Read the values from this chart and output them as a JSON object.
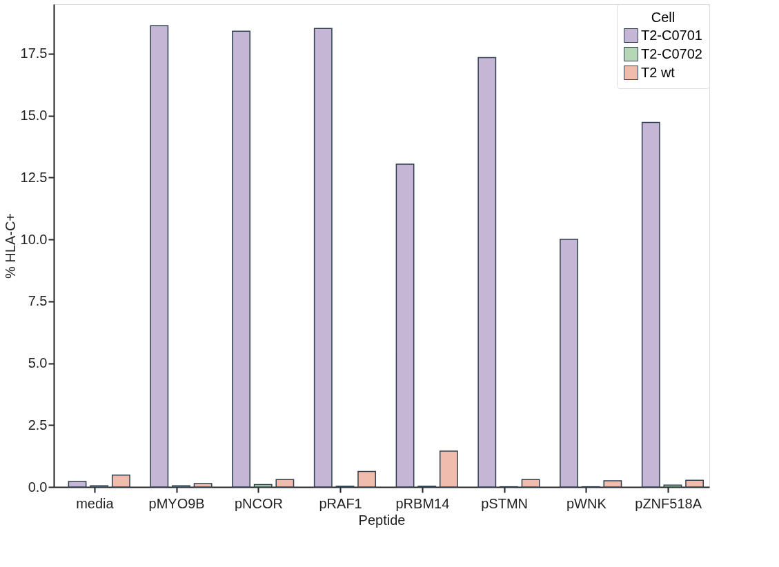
{
  "chart_data": {
    "type": "bar",
    "xlabel": "Peptide",
    "ylabel": "% HLA-C+",
    "legend_title": "Cell",
    "legend": "top right",
    "grid": false,
    "categories": [
      "media",
      "pMYO9B",
      "pNCOR",
      "pRAF1",
      "pRBM14",
      "pSTMN",
      "pWNK",
      "pZNF518A"
    ],
    "series": [
      {
        "name": "T2-C0701",
        "color": "#c5b6d6",
        "values": [
          0.22,
          18.63,
          18.41,
          18.52,
          13.04,
          17.34,
          10.0,
          14.72
        ]
      },
      {
        "name": "T2-C0702",
        "color": "#b6d7b5",
        "values": [
          0.05,
          0.05,
          0.1,
          0.03,
          0.03,
          0.01,
          0.01,
          0.08
        ]
      },
      {
        "name": "T2 wt",
        "color": "#f0bcad",
        "values": [
          0.48,
          0.14,
          0.3,
          0.63,
          1.45,
          0.3,
          0.25,
          0.27
        ]
      }
    ],
    "ylim": [
      0,
      19.5
    ],
    "yticks": [
      {
        "value": 0,
        "label": "0.0"
      },
      {
        "value": 2.5,
        "label": "2.5"
      },
      {
        "value": 5,
        "label": "5.0"
      },
      {
        "value": 7.5,
        "label": "7.5"
      },
      {
        "value": 10,
        "label": "10.0"
      },
      {
        "value": 12.5,
        "label": "12.5"
      },
      {
        "value": 15,
        "label": "15.0"
      },
      {
        "value": 17.5,
        "label": "17.5"
      }
    ]
  }
}
